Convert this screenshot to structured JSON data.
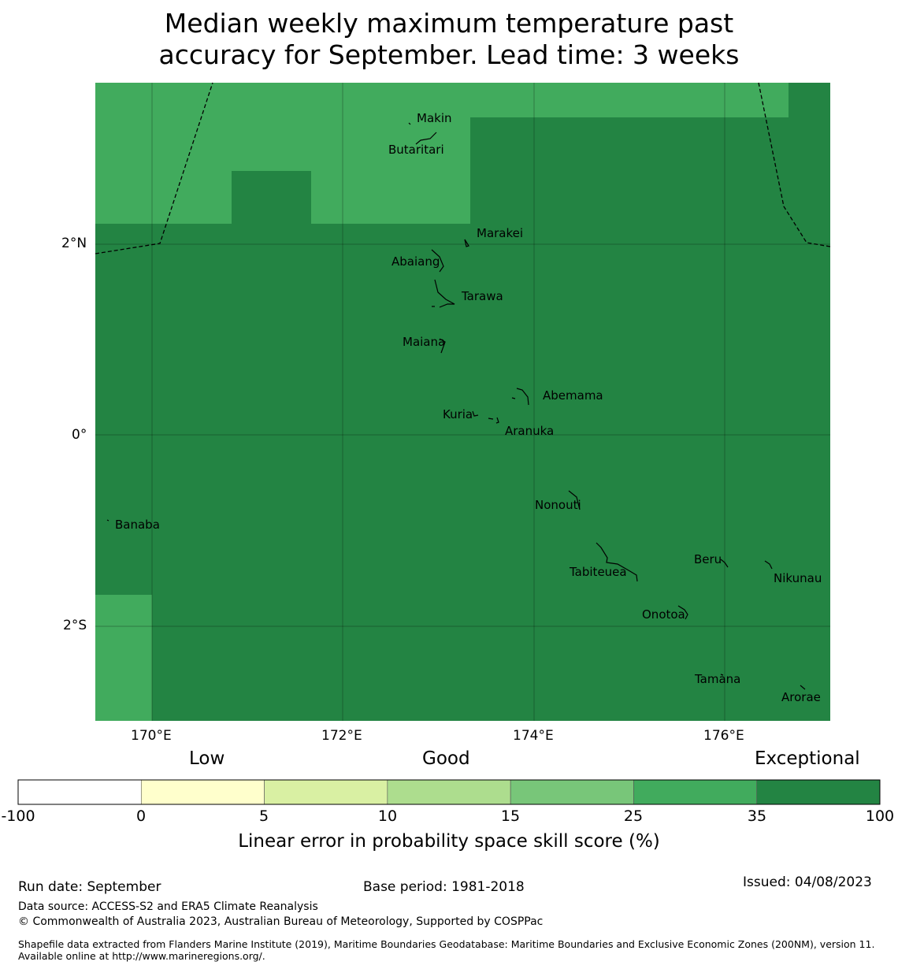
{
  "title_line1": "Median weekly maximum temperature past",
  "title_line2": "accuracy for September. Lead time: 3 weeks",
  "map": {
    "lat_labels": [
      "2°N",
      "0°",
      "2°S"
    ],
    "lon_labels": [
      "170°E",
      "172°E",
      "174°E",
      "176°E"
    ],
    "islands": [
      {
        "name": "Makin",
        "lon": 172.9,
        "lat": 3.35
      },
      {
        "name": "Butaritari",
        "lon": 173.0,
        "lat": 3.1
      },
      {
        "name": "Marakei",
        "lon": 173.3,
        "lat": 2.0
      },
      {
        "name": "Abaiang",
        "lon": 172.95,
        "lat": 1.8
      },
      {
        "name": "Tarawa",
        "lon": 173.0,
        "lat": 1.4
      },
      {
        "name": "Maiana",
        "lon": 173.0,
        "lat": 0.9
      },
      {
        "name": "Abemama",
        "lon": 173.9,
        "lat": 0.4
      },
      {
        "name": "Kuria",
        "lon": 173.4,
        "lat": 0.2
      },
      {
        "name": "Aranuka",
        "lon": 173.6,
        "lat": 0.15
      },
      {
        "name": "Nonouti",
        "lon": 174.4,
        "lat": -0.65
      },
      {
        "name": "Banaba",
        "lon": 169.5,
        "lat": -0.9
      },
      {
        "name": "Tabiteuea",
        "lon": 174.8,
        "lat": -1.35
      },
      {
        "name": "Beru",
        "lon": 176.0,
        "lat": -1.35
      },
      {
        "name": "Nikunau",
        "lon": 176.5,
        "lat": -1.35
      },
      {
        "name": "Onotoa",
        "lon": 175.55,
        "lat": -1.8
      },
      {
        "name": "Tamana",
        "lon": 175.97,
        "lat": -2.5
      },
      {
        "name": "Arorae",
        "lon": 176.8,
        "lat": -2.65
      }
    ],
    "skill_categories": [
      {
        "region": "north band",
        "category": "25 to 35"
      },
      {
        "region": "remainder",
        "category": "35 to 100"
      },
      {
        "region": "southwest corner",
        "category": "25 to 35"
      }
    ]
  },
  "colorbar": {
    "category_labels": [
      "Low",
      "Good",
      "Exceptional"
    ],
    "ticks": [
      "-100",
      "0",
      "5",
      "10",
      "15",
      "25",
      "35",
      "100"
    ],
    "colors": [
      "#ffffff",
      "#ffffcc",
      "#d9f0a3",
      "#addd8e",
      "#78c679",
      "#41ab5d",
      "#238443"
    ],
    "caption": "Linear error in probability space skill score (%)"
  },
  "footer": {
    "run_date": "Run date: September",
    "base_period": "Base period: 1981-2018",
    "issued": "Issued: 04/08/2023",
    "data_source": "Data source: ACCESS-S2 and ERA5 Climate Reanalysis",
    "copyright": "© Commonwealth of Australia 2023, Australian Bureau of Meteorology, Supported by COSPPac",
    "shapefile": "Shapefile data extracted from Flanders Marine Institute (2019), Maritime Boundaries Geodatabase: Maritime Boundaries and Exclusive Economic Zones (200NM), version 11. Available online at http://www.marineregions.org/."
  }
}
